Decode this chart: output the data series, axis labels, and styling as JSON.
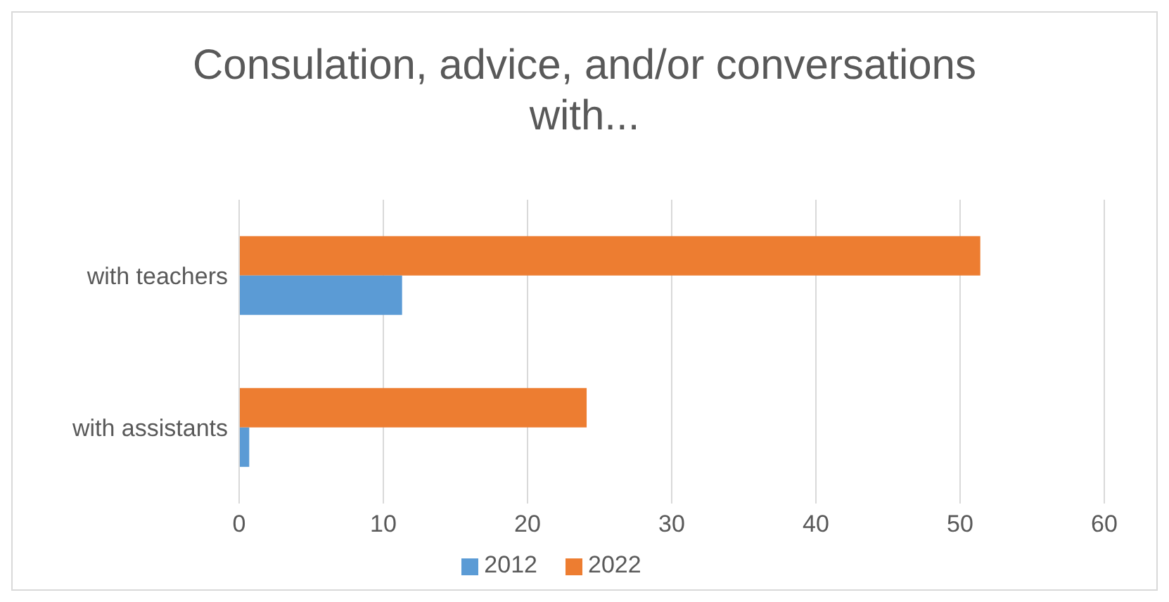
{
  "chart_data": {
    "type": "bar",
    "orientation": "horizontal",
    "title": "Consulation, advice, and/or conversations with...",
    "categories": [
      "with teachers",
      "with assistants"
    ],
    "series": [
      {
        "name": "2022",
        "color": "#ed7d31",
        "values": [
          51.4,
          24.1
        ]
      },
      {
        "name": "2012",
        "color": "#5b9bd5",
        "values": [
          11.3,
          0.7
        ]
      }
    ],
    "xlim": [
      0,
      60
    ],
    "xticks": [
      0,
      10,
      20,
      30,
      40,
      50,
      60
    ],
    "grid": "x",
    "legend": "bottom"
  }
}
